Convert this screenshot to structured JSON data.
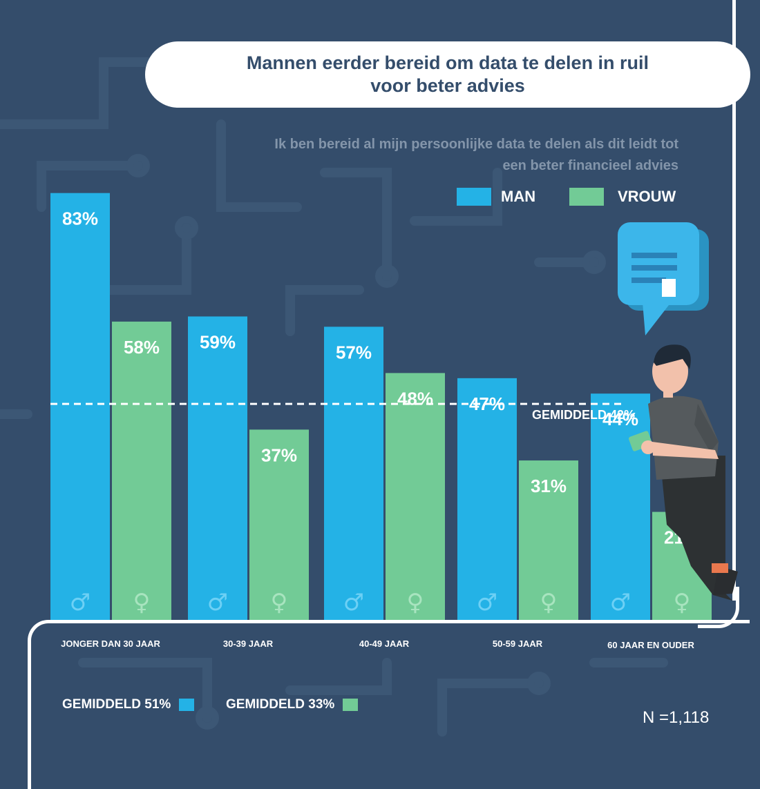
{
  "title": {
    "line1": "Mannen eerder bereid om data te delen in ruil",
    "line2": "voor beter advies"
  },
  "subtitle": {
    "line1": "Ik ben bereid al mijn persoonlijke data te delen als dit leidt tot",
    "line2": "een beter financieel advies"
  },
  "colors": {
    "man": "#24b2e6",
    "vrouw": "#72cb96",
    "background": "#344d6b"
  },
  "chart_data": {
    "type": "bar",
    "categories": [
      "JONGER DAN 30 JAAR",
      "30-39 JAAR",
      "40-49 JAAR",
      "50-59 JAAR",
      "60 JAAR EN OUDER"
    ],
    "series": [
      {
        "name": "MAN",
        "values": [
          83,
          59,
          57,
          47,
          44
        ],
        "labels": [
          "83%",
          "59%",
          "57%",
          "47%",
          "44%"
        ],
        "icon": "male-symbol-icon",
        "symbol": "♂"
      },
      {
        "name": "VROUW",
        "values": [
          58,
          37,
          48,
          31,
          21
        ],
        "labels": [
          "58%",
          "37%",
          "48%",
          "31%",
          "21%"
        ],
        "icon": "female-symbol-icon",
        "symbol": "♀"
      }
    ],
    "ylim": [
      0,
      100
    ],
    "reference_line": {
      "value": 42,
      "label": "GEMIDDELD 42%"
    },
    "legend_position": "top-right",
    "grid": false
  },
  "averages": [
    {
      "label": "GEMIDDELD  51%",
      "color": "#24b2e6"
    },
    {
      "label": "GEMIDDELD  33%",
      "color": "#72cb96"
    }
  ],
  "sample_size": "N =1,118"
}
